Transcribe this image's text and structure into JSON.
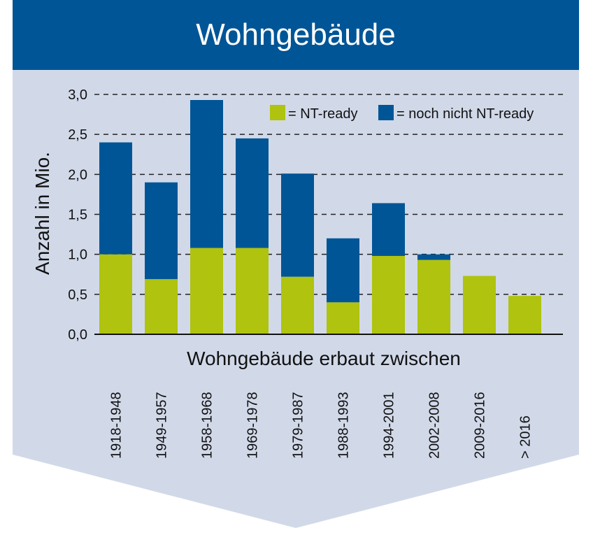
{
  "header": {
    "title": "Wohngebäude"
  },
  "colors": {
    "header_bg": "#005596",
    "panel_bg": "#d1d9e9",
    "nt_ready": "#afc30f",
    "not_ready": "#005596"
  },
  "chart_data": {
    "type": "bar",
    "stacked": true,
    "title": "Wohngebäude",
    "xlabel": "Wohngebäude erbaut zwischen",
    "ylabel": "Anzahl in Mio.",
    "ylim": [
      0,
      3.0
    ],
    "yticks": [
      "0,0",
      "0,5",
      "1,0",
      "1,5",
      "2,0",
      "2,5",
      "3,0"
    ],
    "grid": true,
    "legend_position": "top-right",
    "categories": [
      "1918-1948",
      "1949-1957",
      "1958-1968",
      "1969-1978",
      "1979-1987",
      "1988-1993",
      "1994-2001",
      "2002-2008",
      "2009-2016",
      "> 2016"
    ],
    "series": [
      {
        "name": "= NT-ready",
        "color": "#afc30f",
        "values": [
          1.0,
          0.69,
          1.08,
          1.08,
          0.72,
          0.4,
          0.98,
          0.93,
          0.73,
          0.48
        ]
      },
      {
        "name": "= noch nicht NT-ready",
        "color": "#005596",
        "values": [
          1.4,
          1.21,
          1.85,
          1.37,
          1.29,
          0.8,
          0.66,
          0.07,
          0.0,
          0.0
        ]
      }
    ]
  }
}
